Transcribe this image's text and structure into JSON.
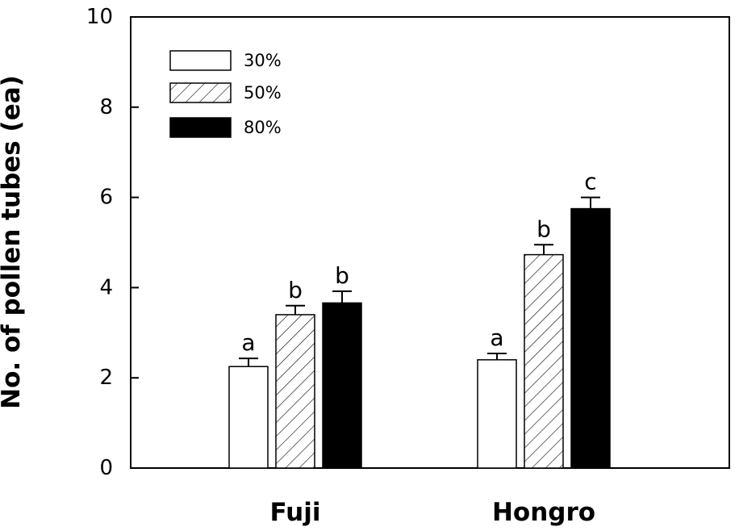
{
  "chart_data": {
    "type": "bar",
    "ylabel": "No. of pollen tubes (ea)",
    "xlabel": "",
    "ylim": [
      0,
      10
    ],
    "yticks": [
      "0",
      "2",
      "4",
      "6",
      "8",
      "10"
    ],
    "categories": [
      "Fuji",
      "Hongro"
    ],
    "series": [
      {
        "name": "30%",
        "values": [
          2.25,
          2.4
        ],
        "errors": [
          0.18,
          0.14
        ],
        "letters": [
          "a",
          "a"
        ],
        "fill": "white",
        "color": "#000000"
      },
      {
        "name": "50%",
        "values": [
          3.4,
          4.73
        ],
        "errors": [
          0.2,
          0.22
        ],
        "letters": [
          "b",
          "b"
        ],
        "fill": "hatch",
        "color": "#000000"
      },
      {
        "name": "80%",
        "values": [
          3.66,
          5.75
        ],
        "errors": [
          0.26,
          0.25
        ],
        "letters": [
          "b",
          "c"
        ],
        "fill": "black",
        "color": "#000000"
      }
    ],
    "legend_position": "top-left",
    "grid": false
  }
}
